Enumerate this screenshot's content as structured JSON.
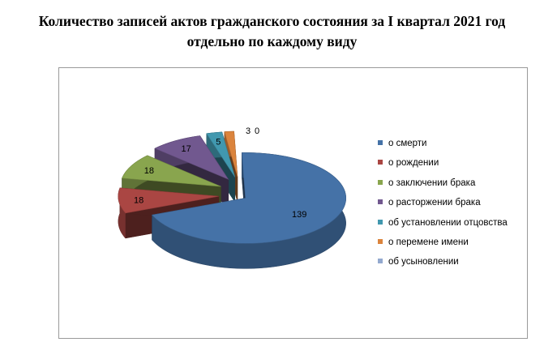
{
  "title": {
    "line1": "Количество записей актов гражданского состояния за I  квартал 2021 год",
    "line2": "отдельно по каждому виду"
  },
  "chart_data": {
    "type": "pie",
    "title": "Количество записей актов гражданского состояния за I  квартал 2021 год отдельно по каждому виду",
    "style": "3d-exploded",
    "legend_position": "right",
    "categories": [
      "о смерти",
      "о рождении",
      "о заключении брака",
      "о расторжении брака",
      "об установлении отцовства",
      "о перемене имени",
      "об усыновлении"
    ],
    "values": [
      139,
      18,
      18,
      17,
      5,
      3,
      0
    ],
    "data_labels": [
      "139",
      "18",
      "18",
      "17",
      "5",
      "3",
      "0"
    ],
    "colors": [
      "#4572A7",
      "#AA4643",
      "#89A54E",
      "#71588F",
      "#4198AF",
      "#DB843D",
      "#93A9CF"
    ]
  }
}
